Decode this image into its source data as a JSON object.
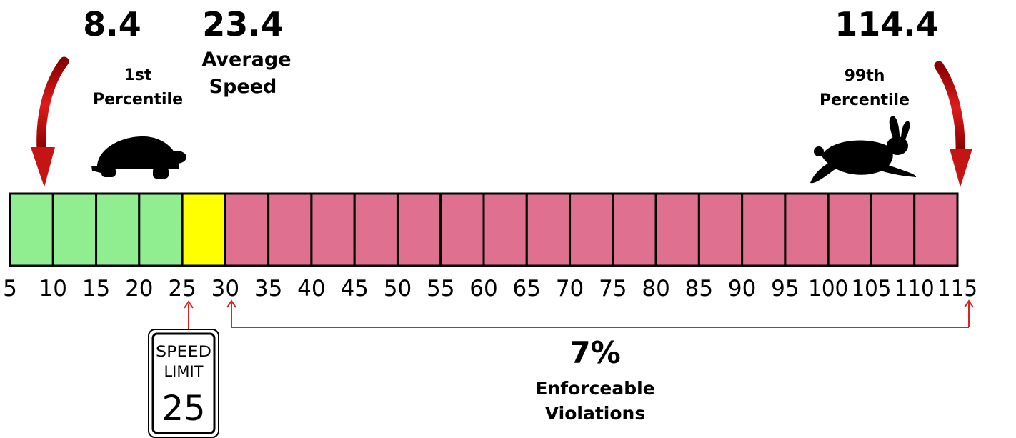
{
  "stats": {
    "p1_value": "8.4",
    "p1_label_line1": "1st",
    "p1_label_line2": "Percentile",
    "avg_value": "23.4",
    "avg_label_line1": "Average",
    "avg_label_line2": "Speed",
    "p99_value": "114.4",
    "p99_label_line1": "99th",
    "p99_label_line2": "Percentile"
  },
  "scale": {
    "ticks": [
      "5",
      "10",
      "15",
      "20",
      "25",
      "30",
      "35",
      "40",
      "45",
      "50",
      "55",
      "60",
      "65",
      "70",
      "75",
      "80",
      "85",
      "90",
      "95",
      "100",
      "105",
      "110",
      "115"
    ],
    "segments": [
      {
        "from": 5,
        "to": 10,
        "zone": "below"
      },
      {
        "from": 10,
        "to": 15,
        "zone": "below"
      },
      {
        "from": 15,
        "to": 20,
        "zone": "below"
      },
      {
        "from": 20,
        "to": 25,
        "zone": "below"
      },
      {
        "from": 25,
        "to": 30,
        "zone": "buffer"
      },
      {
        "from": 30,
        "to": 35,
        "zone": "violation"
      },
      {
        "from": 35,
        "to": 40,
        "zone": "violation"
      },
      {
        "from": 40,
        "to": 45,
        "zone": "violation"
      },
      {
        "from": 45,
        "to": 50,
        "zone": "violation"
      },
      {
        "from": 50,
        "to": 55,
        "zone": "violation"
      },
      {
        "from": 55,
        "to": 60,
        "zone": "violation"
      },
      {
        "from": 60,
        "to": 65,
        "zone": "violation"
      },
      {
        "from": 65,
        "to": 70,
        "zone": "violation"
      },
      {
        "from": 70,
        "to": 75,
        "zone": "violation"
      },
      {
        "from": 75,
        "to": 80,
        "zone": "violation"
      },
      {
        "from": 80,
        "to": 85,
        "zone": "violation"
      },
      {
        "from": 85,
        "to": 90,
        "zone": "violation"
      },
      {
        "from": 90,
        "to": 95,
        "zone": "violation"
      },
      {
        "from": 95,
        "to": 100,
        "zone": "violation"
      },
      {
        "from": 100,
        "to": 105,
        "zone": "violation"
      },
      {
        "from": 105,
        "to": 110,
        "zone": "violation"
      },
      {
        "from": 110,
        "to": 115,
        "zone": "violation"
      }
    ]
  },
  "speed_limit_sign": {
    "line1": "SPEED",
    "line2": "LIMIT",
    "value": "25"
  },
  "enforcement": {
    "percent": "7%",
    "label_line1": "Enforceable",
    "label_line2": "Violations"
  },
  "icons": [
    "down-arrow-icon",
    "tortoise-icon",
    "rabbit-icon",
    "up-arrow-icon"
  ],
  "colors": {
    "below": "#90ee90",
    "buffer": "#ffff00",
    "violation": "#e07090",
    "arrow": "#cc1111",
    "bracket": "#dd2222",
    "text": "#000000"
  }
}
